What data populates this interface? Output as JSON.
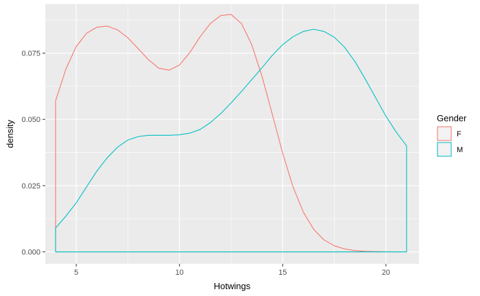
{
  "chart_data": {
    "type": "area",
    "geom": "density",
    "title": "",
    "xlabel": "Hotwings",
    "ylabel": "density",
    "xlim": [
      3.5,
      21.6
    ],
    "ylim": [
      -0.0045,
      0.0935
    ],
    "x_ticks": [
      5,
      10,
      15,
      20
    ],
    "x_tick_labels": [
      "5",
      "10",
      "15",
      "20"
    ],
    "y_ticks": [
      0.0,
      0.025,
      0.05,
      0.075
    ],
    "y_tick_labels": [
      "0.000",
      "0.025",
      "0.050",
      "0.075"
    ],
    "grid": true,
    "legend": {
      "title": "Gender",
      "position": "right"
    },
    "series": [
      {
        "name": "F",
        "color": "#F8766D",
        "x": [
          4,
          4.5,
          5,
          5.5,
          6,
          6.5,
          7,
          7.5,
          8,
          8.5,
          9,
          9.5,
          10,
          10.5,
          11,
          11.5,
          12,
          12.5,
          13,
          13.5,
          14,
          14.5,
          15,
          15.5,
          16,
          16.5,
          17,
          17.5,
          18,
          18.5,
          19,
          19.5,
          20,
          20.5,
          20.7
        ],
        "values": [
          0.057,
          0.069,
          0.0775,
          0.0825,
          0.0848,
          0.0852,
          0.0838,
          0.0808,
          0.0767,
          0.0725,
          0.0693,
          0.0686,
          0.0705,
          0.0752,
          0.0812,
          0.0862,
          0.0892,
          0.0896,
          0.0862,
          0.0782,
          0.0662,
          0.0518,
          0.0372,
          0.0245,
          0.015,
          0.0085,
          0.0045,
          0.0023,
          0.0011,
          0.0005,
          0.0002,
          0.0001,
          5e-05,
          2e-05,
          0.0
        ]
      },
      {
        "name": "M",
        "color": "#00BFC4",
        "x": [
          4,
          4.5,
          5,
          5.5,
          6,
          6.5,
          7,
          7.5,
          8,
          8.5,
          9,
          9.5,
          10,
          10.5,
          11,
          11.5,
          12,
          12.5,
          13,
          13.5,
          14,
          14.5,
          15,
          15.5,
          16,
          16.5,
          17,
          17.5,
          18,
          18.5,
          19,
          19.5,
          20,
          20.5,
          21
        ],
        "values": [
          0.009,
          0.0135,
          0.0185,
          0.0245,
          0.0305,
          0.0355,
          0.0395,
          0.0422,
          0.0435,
          0.044,
          0.044,
          0.044,
          0.0442,
          0.0448,
          0.0462,
          0.0488,
          0.0522,
          0.0562,
          0.0605,
          0.065,
          0.0695,
          0.0742,
          0.0782,
          0.0812,
          0.0832,
          0.084,
          0.0832,
          0.081,
          0.0772,
          0.0718,
          0.0652,
          0.0582,
          0.0512,
          0.0452,
          0.04
        ]
      }
    ]
  }
}
